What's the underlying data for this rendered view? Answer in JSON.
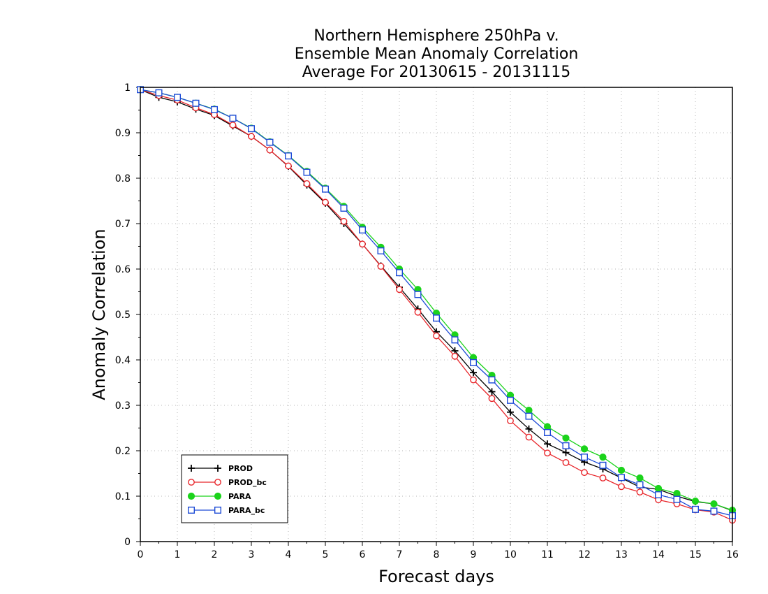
{
  "chart_data": {
    "type": "line",
    "title": [
      "Northern Hemisphere 250hPa v.",
      "Ensemble Mean Anomaly Correlation",
      "Average For 20130615 - 20131115"
    ],
    "xlabel": "Forecast days",
    "ylabel": "Anomaly Correlation",
    "xlim": [
      0,
      16
    ],
    "ylim": [
      0,
      1
    ],
    "x_ticks": [
      "0",
      "1",
      "2",
      "3",
      "4",
      "5",
      "6",
      "7",
      "8",
      "9",
      "10",
      "11",
      "12",
      "13",
      "14",
      "15",
      "16"
    ],
    "y_ticks": [
      "0",
      "0.1",
      "0.2",
      "0.3",
      "0.4",
      "0.5",
      "0.6",
      "0.7",
      "0.8",
      "0.9",
      "1"
    ],
    "grid": true,
    "legend_position": "bottom-left",
    "x": [
      0,
      0.5,
      1,
      1.5,
      2,
      2.5,
      3,
      3.5,
      4,
      4.5,
      5,
      5.5,
      6,
      6.5,
      7,
      7.5,
      8,
      8.5,
      9,
      9.5,
      10,
      10.5,
      11,
      11.5,
      12,
      12.5,
      13,
      13.5,
      14,
      14.5,
      15,
      15.5,
      16
    ],
    "series": [
      {
        "name": "PROD",
        "color": "#000000",
        "marker": "plus",
        "values": [
          0.995,
          0.978,
          0.968,
          0.952,
          0.938,
          0.915,
          0.892,
          0.862,
          0.826,
          0.785,
          0.745,
          0.7,
          0.655,
          0.607,
          0.56,
          0.512,
          0.462,
          0.42,
          0.372,
          0.33,
          0.285,
          0.248,
          0.215,
          0.196,
          0.175,
          0.16,
          0.14,
          0.12,
          0.115,
          0.1,
          0.088,
          0.083,
          0.068
        ]
      },
      {
        "name": "PROD_bc",
        "color": "#e8262b",
        "marker": "open-circle",
        "values": [
          0.995,
          0.982,
          0.972,
          0.955,
          0.94,
          0.917,
          0.892,
          0.862,
          0.827,
          0.788,
          0.747,
          0.705,
          0.655,
          0.606,
          0.555,
          0.505,
          0.453,
          0.408,
          0.356,
          0.315,
          0.266,
          0.23,
          0.195,
          0.174,
          0.152,
          0.14,
          0.121,
          0.109,
          0.092,
          0.083,
          0.07,
          0.065,
          0.047
        ]
      },
      {
        "name": "PARA",
        "color": "#1bd31b",
        "marker": "filled-circle",
        "values": [
          0.995,
          0.988,
          0.978,
          0.965,
          0.952,
          0.932,
          0.91,
          0.88,
          0.85,
          0.815,
          0.778,
          0.738,
          0.692,
          0.648,
          0.6,
          0.555,
          0.503,
          0.455,
          0.405,
          0.366,
          0.322,
          0.289,
          0.253,
          0.228,
          0.204,
          0.186,
          0.157,
          0.14,
          0.117,
          0.106,
          0.089,
          0.083,
          0.069
        ]
      },
      {
        "name": "PARA_bc",
        "color": "#1d4bd6",
        "marker": "open-square",
        "values": [
          0.995,
          0.988,
          0.978,
          0.965,
          0.951,
          0.932,
          0.909,
          0.879,
          0.849,
          0.813,
          0.776,
          0.734,
          0.686,
          0.64,
          0.592,
          0.544,
          0.492,
          0.444,
          0.394,
          0.356,
          0.311,
          0.276,
          0.24,
          0.211,
          0.186,
          0.168,
          0.141,
          0.125,
          0.103,
          0.093,
          0.071,
          0.067,
          0.057
        ]
      }
    ]
  }
}
